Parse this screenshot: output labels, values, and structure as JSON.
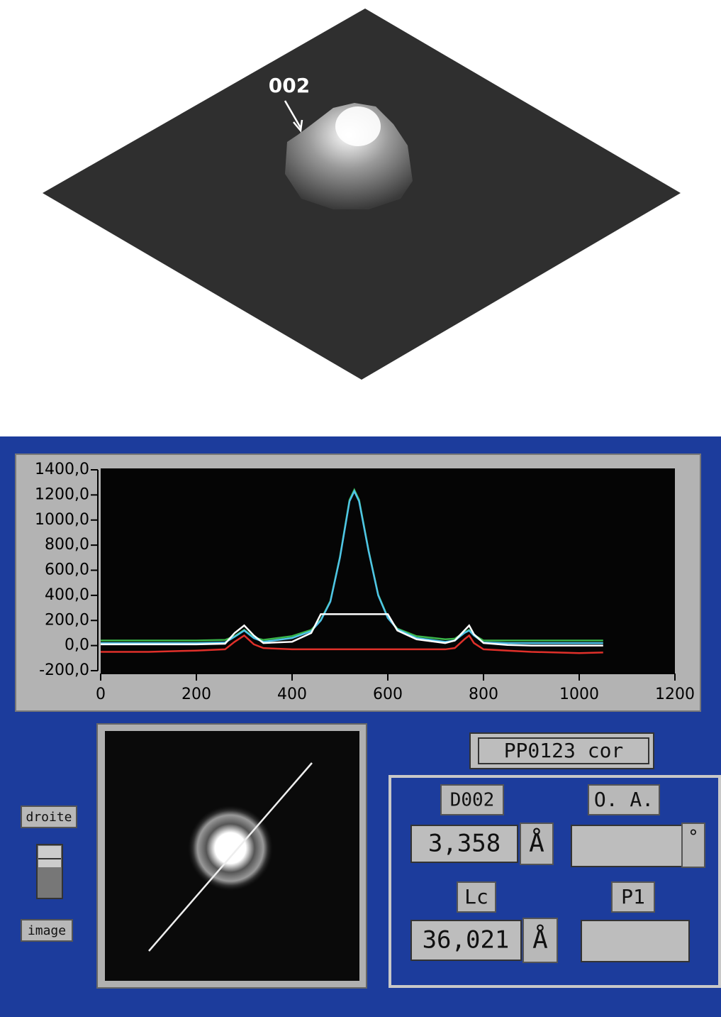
{
  "figure_label": "002",
  "chart_data": {
    "type": "line",
    "x": [
      0,
      100,
      200,
      260,
      280,
      300,
      320,
      340,
      400,
      440,
      460,
      480,
      500,
      520,
      530,
      540,
      560,
      580,
      600,
      620,
      660,
      720,
      740,
      760,
      770,
      780,
      800,
      850,
      900,
      1000,
      1050
    ],
    "series": [
      {
        "color": "#3ab54a",
        "values": [
          40,
          40,
          40,
          45,
          75,
          125,
          65,
          45,
          75,
          125,
          205,
          355,
          705,
          1160,
          1240,
          1160,
          755,
          405,
          225,
          135,
          75,
          50,
          55,
          105,
          125,
          85,
          40,
          40,
          40,
          40,
          40
        ]
      },
      {
        "color": "#4fc3e8",
        "values": [
          20,
          20,
          20,
          25,
          70,
          120,
          60,
          30,
          60,
          115,
          200,
          350,
          700,
          1150,
          1230,
          1150,
          750,
          400,
          220,
          130,
          60,
          30,
          40,
          100,
          120,
          80,
          25,
          20,
          20,
          20,
          20
        ]
      },
      {
        "color": "#ffffff",
        "values": [
          10,
          10,
          10,
          15,
          100,
          160,
          80,
          20,
          30,
          100,
          250,
          250,
          250,
          250,
          250,
          250,
          250,
          250,
          250,
          120,
          50,
          20,
          40,
          120,
          160,
          90,
          20,
          5,
          0,
          0,
          0
        ]
      },
      {
        "color": "#e0302a",
        "values": [
          -50,
          -50,
          -40,
          -30,
          30,
          80,
          10,
          -20,
          -30,
          -30,
          -30,
          -30,
          -30,
          -30,
          -30,
          -30,
          -30,
          -30,
          -30,
          -30,
          -30,
          -30,
          -20,
          50,
          80,
          20,
          -30,
          -40,
          -50,
          -60,
          -55
        ]
      }
    ],
    "xlim": [
      0,
      1200
    ],
    "xticks": [
      0,
      200,
      400,
      600,
      800,
      1000,
      1200
    ],
    "ylim": [
      -200,
      1400
    ],
    "yticks": [
      {
        "value": -200,
        "label": "-200,0"
      },
      {
        "value": 0,
        "label": "0,0"
      },
      {
        "value": 200,
        "label": "200,0"
      },
      {
        "value": 400,
        "label": "400,0"
      },
      {
        "value": 600,
        "label": "600,0"
      },
      {
        "value": 800,
        "label": "800,0"
      },
      {
        "value": 1000,
        "label": "1000,0"
      },
      {
        "value": 1200,
        "label": "1200,0"
      },
      {
        "value": 1400,
        "label": "1400,0"
      }
    ]
  },
  "ui": {
    "switch_top": "droite",
    "switch_bottom": "image",
    "file_name": "PP0123 cor",
    "d002_label": "D002",
    "d002_value": "3,358",
    "d002_unit": "Å",
    "oa_label": "O. A.",
    "oa_unit": "°",
    "lc_label": "Lc",
    "lc_value": "36,021",
    "lc_unit": "Å",
    "p1_label": "P1"
  }
}
